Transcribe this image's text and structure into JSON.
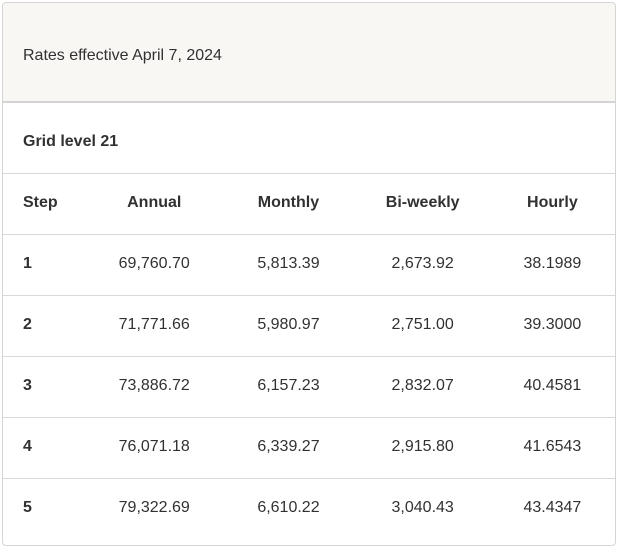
{
  "banner": {
    "text": "Rates effective April 7, 2024"
  },
  "section": {
    "title": "Grid level 21"
  },
  "table": {
    "columns": [
      "Step",
      "Annual",
      "Monthly",
      "Bi-weekly",
      "Hourly"
    ],
    "rows": [
      [
        "1",
        "69,760.70",
        "5,813.39",
        "2,673.92",
        "38.1989"
      ],
      [
        "2",
        "71,771.66",
        "5,980.97",
        "2,751.00",
        "39.3000"
      ],
      [
        "3",
        "73,886.72",
        "6,157.23",
        "2,832.07",
        "40.4581"
      ],
      [
        "4",
        "76,071.18",
        "6,339.27",
        "2,915.80",
        "41.6543"
      ],
      [
        "5",
        "79,322.69",
        "6,610.22",
        "3,040.43",
        "43.4347"
      ]
    ]
  },
  "colors": {
    "panel_bg": "#f8f7f4",
    "text": "#313132",
    "card_border": "#d4d4d4",
    "row_divider": "#d9d9d9"
  }
}
